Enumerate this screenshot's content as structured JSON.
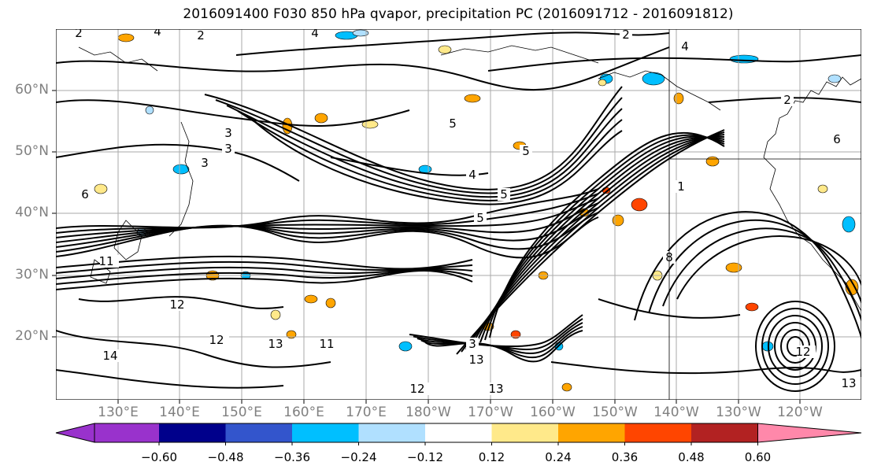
{
  "title": "2016091400 F030 850 hPa qvapor, precipitation PC (2016091712 - 2016091812)",
  "lat_labels": [
    "60°N",
    "50°N",
    "40°N",
    "30°N",
    "20°N"
  ],
  "lon_labels": [
    "130°E",
    "140°E",
    "150°E",
    "160°E",
    "170°E",
    "180°W",
    "170°W",
    "160°W",
    "150°W",
    "140°W",
    "130°W",
    "120°W"
  ],
  "contour_labels": [
    "2",
    "4",
    "2",
    "4",
    "2",
    "3",
    "3",
    "3",
    "5",
    "5",
    "4",
    "5",
    "5",
    "4",
    "1",
    "6",
    "11",
    "12",
    "12",
    "14",
    "11",
    "13",
    "13",
    "3",
    "12",
    "12",
    "13",
    "13",
    "2",
    "6",
    "8"
  ],
  "colorbar": {
    "tick_labels": [
      "−0.60",
      "−0.48",
      "−0.36",
      "−0.24",
      "−0.12",
      "0.12",
      "0.24",
      "0.36",
      "0.48",
      "0.60"
    ],
    "colors": [
      "#9932cc",
      "#00008b",
      "#3355cc",
      "#00bfff",
      "#b0e0ff",
      "#ffffff",
      "#ffe98a",
      "#ffa500",
      "#ff4500",
      "#b22222",
      "#ff88aa"
    ]
  },
  "fill_colors": {
    "neg_light": "#b0e0ff",
    "neg_mid": "#00bfff",
    "pos_light": "#ffe98a",
    "pos_mid": "#ffa500",
    "pos_strong": "#ff4500"
  }
}
